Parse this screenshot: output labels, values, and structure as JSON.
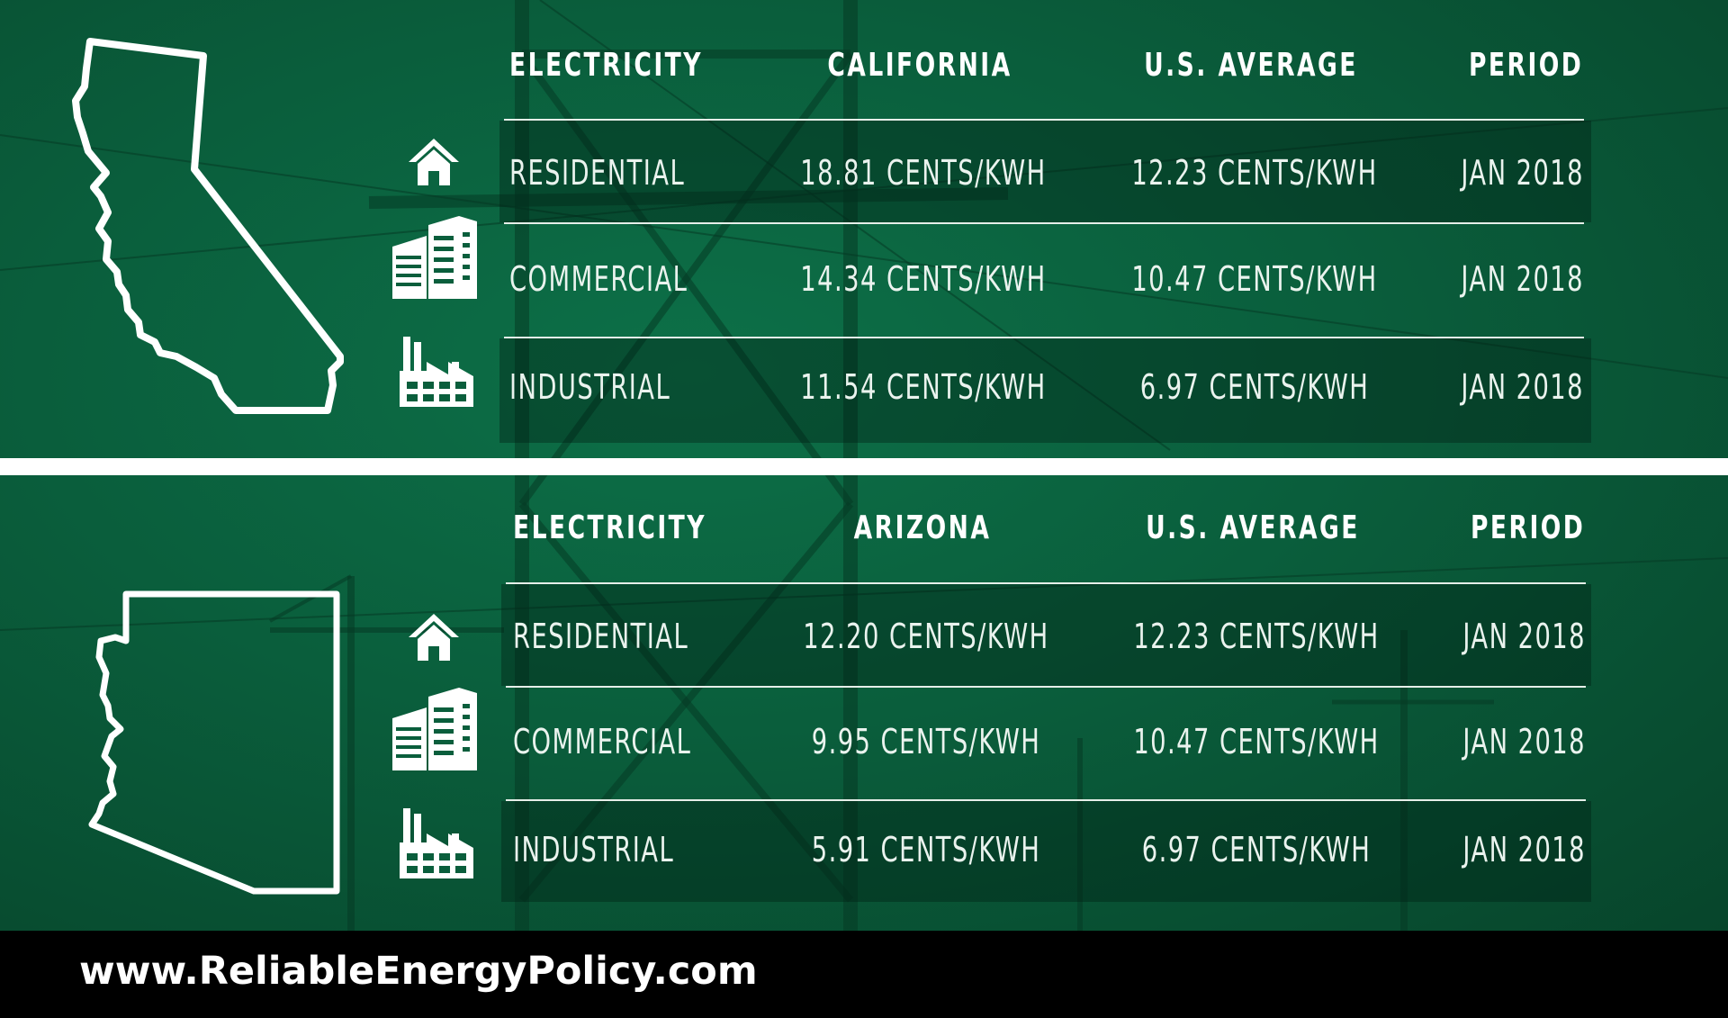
{
  "colors": {
    "background_green": "#0a5e3c",
    "text": "#ffffff",
    "footer": "#000000"
  },
  "footer": {
    "url": "www.ReliableEnergyPolicy.com"
  },
  "chart_data": [
    {
      "type": "table",
      "state_icon": "california-outline-icon",
      "columns": [
        "ELECTRICITY",
        "CALIFORNIA",
        "U.S. AVERAGE",
        "PERIOD"
      ],
      "rows": [
        {
          "icon": "house-icon",
          "sector": "RESIDENTIAL",
          "state_value": "18.81 CENTS/KWH",
          "us_value": "12.23 CENTS/KWH",
          "period": "JAN 2018"
        },
        {
          "icon": "office-building-icon",
          "sector": "COMMERCIAL",
          "state_value": "14.34 CENTS/KWH",
          "us_value": "10.47 CENTS/KWH",
          "period": "JAN 2018"
        },
        {
          "icon": "factory-icon",
          "sector": "INDUSTRIAL",
          "state_value": "11.54 CENTS/KWH",
          "us_value": "6.97 CENTS/KWH",
          "period": "JAN 2018"
        }
      ]
    },
    {
      "type": "table",
      "state_icon": "arizona-outline-icon",
      "columns": [
        "ELECTRICITY",
        "ARIZONA",
        "U.S. AVERAGE",
        "PERIOD"
      ],
      "rows": [
        {
          "icon": "house-icon",
          "sector": "RESIDENTIAL",
          "state_value": "12.20 CENTS/KWH",
          "us_value": "12.23 CENTS/KWH",
          "period": "JAN 2018"
        },
        {
          "icon": "office-building-icon",
          "sector": "COMMERCIAL",
          "state_value": "9.95 CENTS/KWH",
          "us_value": "10.47 CENTS/KWH",
          "period": "JAN 2018"
        },
        {
          "icon": "factory-icon",
          "sector": "INDUSTRIAL",
          "state_value": "5.91 CENTS/KWH",
          "us_value": "6.97 CENTS/KWH",
          "period": "JAN 2018"
        }
      ]
    }
  ]
}
